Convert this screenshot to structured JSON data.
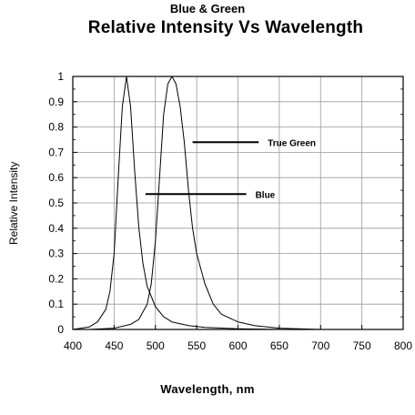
{
  "header": {
    "sup_title": "Blue & Green",
    "main_title": "Relative Intensity Vs Wavelength"
  },
  "chart_data": {
    "type": "line",
    "title": "Relative Intensity Vs Wavelength",
    "xlabel": "Wavelength, nm",
    "ylabel": "Relative Intensity",
    "xlim": [
      400,
      800
    ],
    "ylim": [
      0,
      1
    ],
    "grid": true,
    "xticks": [
      400,
      450,
      500,
      550,
      600,
      650,
      700,
      750,
      800
    ],
    "yticks": [
      0,
      0.1,
      0.2,
      0.3,
      0.4,
      0.5,
      0.6,
      0.7,
      0.8,
      0.9,
      1
    ],
    "series": [
      {
        "name": "Blue",
        "color": "#000000",
        "x": [
          400,
          420,
          430,
          440,
          445,
          450,
          455,
          460,
          465,
          470,
          475,
          480,
          485,
          490,
          500,
          510,
          520,
          540,
          560,
          600,
          650
        ],
        "y": [
          0.0,
          0.01,
          0.03,
          0.08,
          0.15,
          0.3,
          0.6,
          0.88,
          1.0,
          0.88,
          0.62,
          0.4,
          0.26,
          0.17,
          0.09,
          0.05,
          0.03,
          0.015,
          0.008,
          0.003,
          0.0
        ]
      },
      {
        "name": "True Green",
        "color": "#000000",
        "x": [
          420,
          450,
          470,
          480,
          490,
          495,
          500,
          505,
          510,
          515,
          520,
          525,
          530,
          535,
          540,
          545,
          550,
          560,
          570,
          580,
          600,
          620,
          650,
          700
        ],
        "y": [
          0.0,
          0.005,
          0.02,
          0.04,
          0.1,
          0.18,
          0.35,
          0.6,
          0.85,
          0.97,
          1.0,
          0.97,
          0.88,
          0.74,
          0.55,
          0.4,
          0.3,
          0.18,
          0.1,
          0.06,
          0.03,
          0.015,
          0.005,
          0.0
        ]
      }
    ],
    "annotations": [
      {
        "text": "True Green",
        "series": "True Green",
        "y": 0.74,
        "x_start": 545,
        "x_end": 625
      },
      {
        "text": "Blue",
        "series": "Blue",
        "y": 0.535,
        "x_start": 488,
        "x_end": 610
      }
    ]
  }
}
